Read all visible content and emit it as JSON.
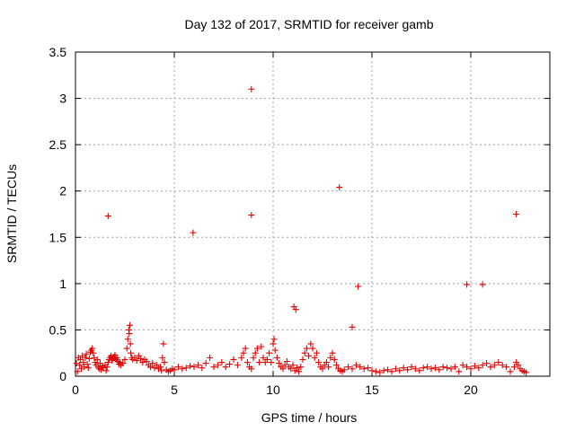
{
  "chart_data": {
    "type": "scatter",
    "title": "Day 132 of 2017, SRMTID for receiver gamb",
    "xlabel": "GPS time / hours",
    "ylabel": "SRMTID / TECUs",
    "xlim": [
      0,
      24
    ],
    "ylim": [
      0,
      3.5
    ],
    "xticks": [
      0,
      5,
      10,
      15,
      20
    ],
    "xtick_labels": [
      "0",
      "5",
      "10",
      "15",
      "20"
    ],
    "yticks": [
      0,
      0.5,
      1,
      1.5,
      2,
      2.5,
      3,
      3.5
    ],
    "ytick_labels": [
      "0",
      "0.5",
      "1",
      "1.5",
      "2",
      "2.5",
      "3",
      "3.5"
    ],
    "grid": true,
    "marker": "plus",
    "color": "#e00000",
    "series": [
      {
        "name": "SRMTID",
        "points": [
          [
            0.05,
            0.14
          ],
          [
            0.1,
            0.05
          ],
          [
            0.15,
            0.2
          ],
          [
            0.2,
            0.12
          ],
          [
            0.25,
            0.18
          ],
          [
            0.3,
            0.08
          ],
          [
            0.35,
            0.22
          ],
          [
            0.4,
            0.15
          ],
          [
            0.45,
            0.1
          ],
          [
            0.5,
            0.2
          ],
          [
            0.55,
            0.24
          ],
          [
            0.6,
            0.13
          ],
          [
            0.65,
            0.09
          ],
          [
            0.7,
            0.19
          ],
          [
            0.75,
            0.26
          ],
          [
            0.8,
            0.28
          ],
          [
            0.85,
            0.3
          ],
          [
            0.9,
            0.25
          ],
          [
            0.95,
            0.2
          ],
          [
            1.0,
            0.15
          ],
          [
            1.05,
            0.12
          ],
          [
            1.1,
            0.18
          ],
          [
            1.15,
            0.1
          ],
          [
            1.2,
            0.08
          ],
          [
            1.25,
            0.14
          ],
          [
            1.3,
            0.07
          ],
          [
            1.35,
            0.11
          ],
          [
            1.4,
            0.09
          ],
          [
            1.5,
            0.12
          ],
          [
            1.55,
            0.06
          ],
          [
            1.6,
            0.1
          ],
          [
            1.65,
            0.15
          ],
          [
            1.7,
            0.18
          ],
          [
            1.75,
            0.2
          ],
          [
            1.8,
            0.22
          ],
          [
            1.85,
            0.17
          ],
          [
            1.9,
            0.19
          ],
          [
            1.95,
            0.21
          ],
          [
            2.0,
            0.23
          ],
          [
            2.05,
            0.18
          ],
          [
            2.1,
            0.2
          ],
          [
            2.15,
            0.16
          ],
          [
            2.2,
            0.13
          ],
          [
            2.25,
            0.15
          ],
          [
            2.3,
            0.12
          ],
          [
            2.4,
            0.14
          ],
          [
            2.5,
            0.18
          ],
          [
            2.6,
            0.3
          ],
          [
            2.65,
            0.4
          ],
          [
            2.7,
            0.5
          ],
          [
            2.72,
            0.46
          ],
          [
            2.75,
            0.55
          ],
          [
            2.78,
            0.35
          ],
          [
            2.8,
            0.25
          ],
          [
            2.85,
            0.2
          ],
          [
            2.9,
            0.18
          ],
          [
            3.0,
            0.2
          ],
          [
            3.1,
            0.17
          ],
          [
            3.2,
            0.22
          ],
          [
            3.3,
            0.19
          ],
          [
            3.4,
            0.15
          ],
          [
            3.5,
            0.18
          ],
          [
            3.6,
            0.16
          ],
          [
            3.7,
            0.12
          ],
          [
            3.8,
            0.1
          ],
          [
            3.9,
            0.14
          ],
          [
            4.0,
            0.09
          ],
          [
            4.1,
            0.12
          ],
          [
            4.2,
            0.08
          ],
          [
            4.3,
            0.1
          ],
          [
            4.35,
            0.06
          ],
          [
            4.4,
            0.2
          ],
          [
            4.45,
            0.35
          ],
          [
            4.5,
            0.15
          ],
          [
            4.6,
            0.07
          ],
          [
            4.7,
            0.05
          ],
          [
            4.8,
            0.06
          ],
          [
            4.9,
            0.08
          ],
          [
            5.0,
            0.07
          ],
          [
            5.2,
            0.1
          ],
          [
            5.4,
            0.08
          ],
          [
            5.6,
            0.09
          ],
          [
            5.8,
            0.11
          ],
          [
            6.0,
            0.1
          ],
          [
            6.2,
            0.12
          ],
          [
            6.4,
            0.09
          ],
          [
            6.6,
            0.14
          ],
          [
            6.8,
            0.2
          ],
          [
            7.0,
            0.1
          ],
          [
            7.2,
            0.12
          ],
          [
            7.4,
            0.15
          ],
          [
            7.6,
            0.1
          ],
          [
            7.8,
            0.13
          ],
          [
            8.0,
            0.18
          ],
          [
            8.2,
            0.12
          ],
          [
            8.4,
            0.2
          ],
          [
            8.5,
            0.25
          ],
          [
            8.6,
            0.3
          ],
          [
            8.7,
            0.15
          ],
          [
            8.8,
            0.1
          ],
          [
            8.9,
            0.08
          ],
          [
            9.0,
            0.2
          ],
          [
            9.1,
            0.25
          ],
          [
            9.2,
            0.3
          ],
          [
            9.3,
            0.15
          ],
          [
            9.4,
            0.32
          ],
          [
            9.5,
            0.2
          ],
          [
            9.6,
            0.15
          ],
          [
            9.7,
            0.18
          ],
          [
            9.8,
            0.25
          ],
          [
            9.9,
            0.15
          ],
          [
            10.0,
            0.35
          ],
          [
            10.05,
            0.4
          ],
          [
            10.1,
            0.28
          ],
          [
            10.2,
            0.2
          ],
          [
            10.3,
            0.14
          ],
          [
            10.4,
            0.1
          ],
          [
            10.5,
            0.08
          ],
          [
            10.6,
            0.12
          ],
          [
            10.7,
            0.16
          ],
          [
            10.8,
            0.1
          ],
          [
            10.9,
            0.08
          ],
          [
            11.0,
            0.12
          ],
          [
            11.1,
            0.06
          ],
          [
            11.2,
            0.09
          ],
          [
            11.3,
            0.05
          ],
          [
            11.4,
            0.1
          ],
          [
            11.5,
            0.18
          ],
          [
            11.6,
            0.25
          ],
          [
            11.7,
            0.3
          ],
          [
            11.8,
            0.22
          ],
          [
            11.9,
            0.35
          ],
          [
            12.0,
            0.3
          ],
          [
            12.1,
            0.2
          ],
          [
            12.2,
            0.25
          ],
          [
            12.3,
            0.15
          ],
          [
            12.4,
            0.1
          ],
          [
            12.5,
            0.08
          ],
          [
            12.6,
            0.12
          ],
          [
            12.7,
            0.15
          ],
          [
            12.8,
            0.1
          ],
          [
            12.9,
            0.2
          ],
          [
            13.0,
            0.25
          ],
          [
            13.1,
            0.18
          ],
          [
            13.2,
            0.12
          ],
          [
            13.3,
            0.08
          ],
          [
            13.4,
            0.06
          ],
          [
            13.5,
            0.05
          ],
          [
            13.6,
            0.07
          ],
          [
            13.8,
            0.1
          ],
          [
            14.0,
            0.08
          ],
          [
            14.2,
            0.12
          ],
          [
            14.4,
            0.1
          ],
          [
            14.6,
            0.08
          ],
          [
            14.8,
            0.09
          ],
          [
            15.0,
            0.06
          ],
          [
            15.2,
            0.05
          ],
          [
            15.4,
            0.04
          ],
          [
            15.6,
            0.06
          ],
          [
            15.8,
            0.07
          ],
          [
            16.0,
            0.05
          ],
          [
            16.2,
            0.08
          ],
          [
            16.4,
            0.06
          ],
          [
            16.6,
            0.09
          ],
          [
            16.8,
            0.07
          ],
          [
            17.0,
            0.1
          ],
          [
            17.2,
            0.08
          ],
          [
            17.4,
            0.06
          ],
          [
            17.6,
            0.09
          ],
          [
            17.8,
            0.1
          ],
          [
            18.0,
            0.08
          ],
          [
            18.2,
            0.09
          ],
          [
            18.4,
            0.07
          ],
          [
            18.6,
            0.1
          ],
          [
            18.8,
            0.09
          ],
          [
            19.0,
            0.08
          ],
          [
            19.2,
            0.1
          ],
          [
            19.4,
            0.05
          ],
          [
            19.6,
            0.12
          ],
          [
            19.8,
            0.1
          ],
          [
            20.0,
            0.08
          ],
          [
            20.2,
            0.11
          ],
          [
            20.4,
            0.09
          ],
          [
            20.6,
            0.12
          ],
          [
            20.8,
            0.14
          ],
          [
            21.0,
            0.1
          ],
          [
            21.2,
            0.12
          ],
          [
            21.4,
            0.15
          ],
          [
            21.6,
            0.12
          ],
          [
            21.8,
            0.1
          ],
          [
            22.0,
            0.05
          ],
          [
            22.2,
            0.1
          ],
          [
            22.3,
            0.15
          ],
          [
            22.4,
            0.12
          ],
          [
            22.5,
            0.08
          ],
          [
            22.6,
            0.06
          ],
          [
            22.7,
            0.05
          ],
          [
            22.8,
            0.04
          ],
          [
            1.65,
            1.73
          ],
          [
            5.95,
            1.55
          ],
          [
            8.9,
            3.1
          ],
          [
            8.9,
            1.74
          ],
          [
            11.05,
            0.75
          ],
          [
            11.15,
            0.72
          ],
          [
            13.35,
            2.04
          ],
          [
            14.0,
            0.53
          ],
          [
            14.3,
            0.97
          ],
          [
            19.8,
            0.99
          ],
          [
            20.6,
            0.99
          ],
          [
            22.3,
            1.75
          ]
        ]
      }
    ]
  }
}
